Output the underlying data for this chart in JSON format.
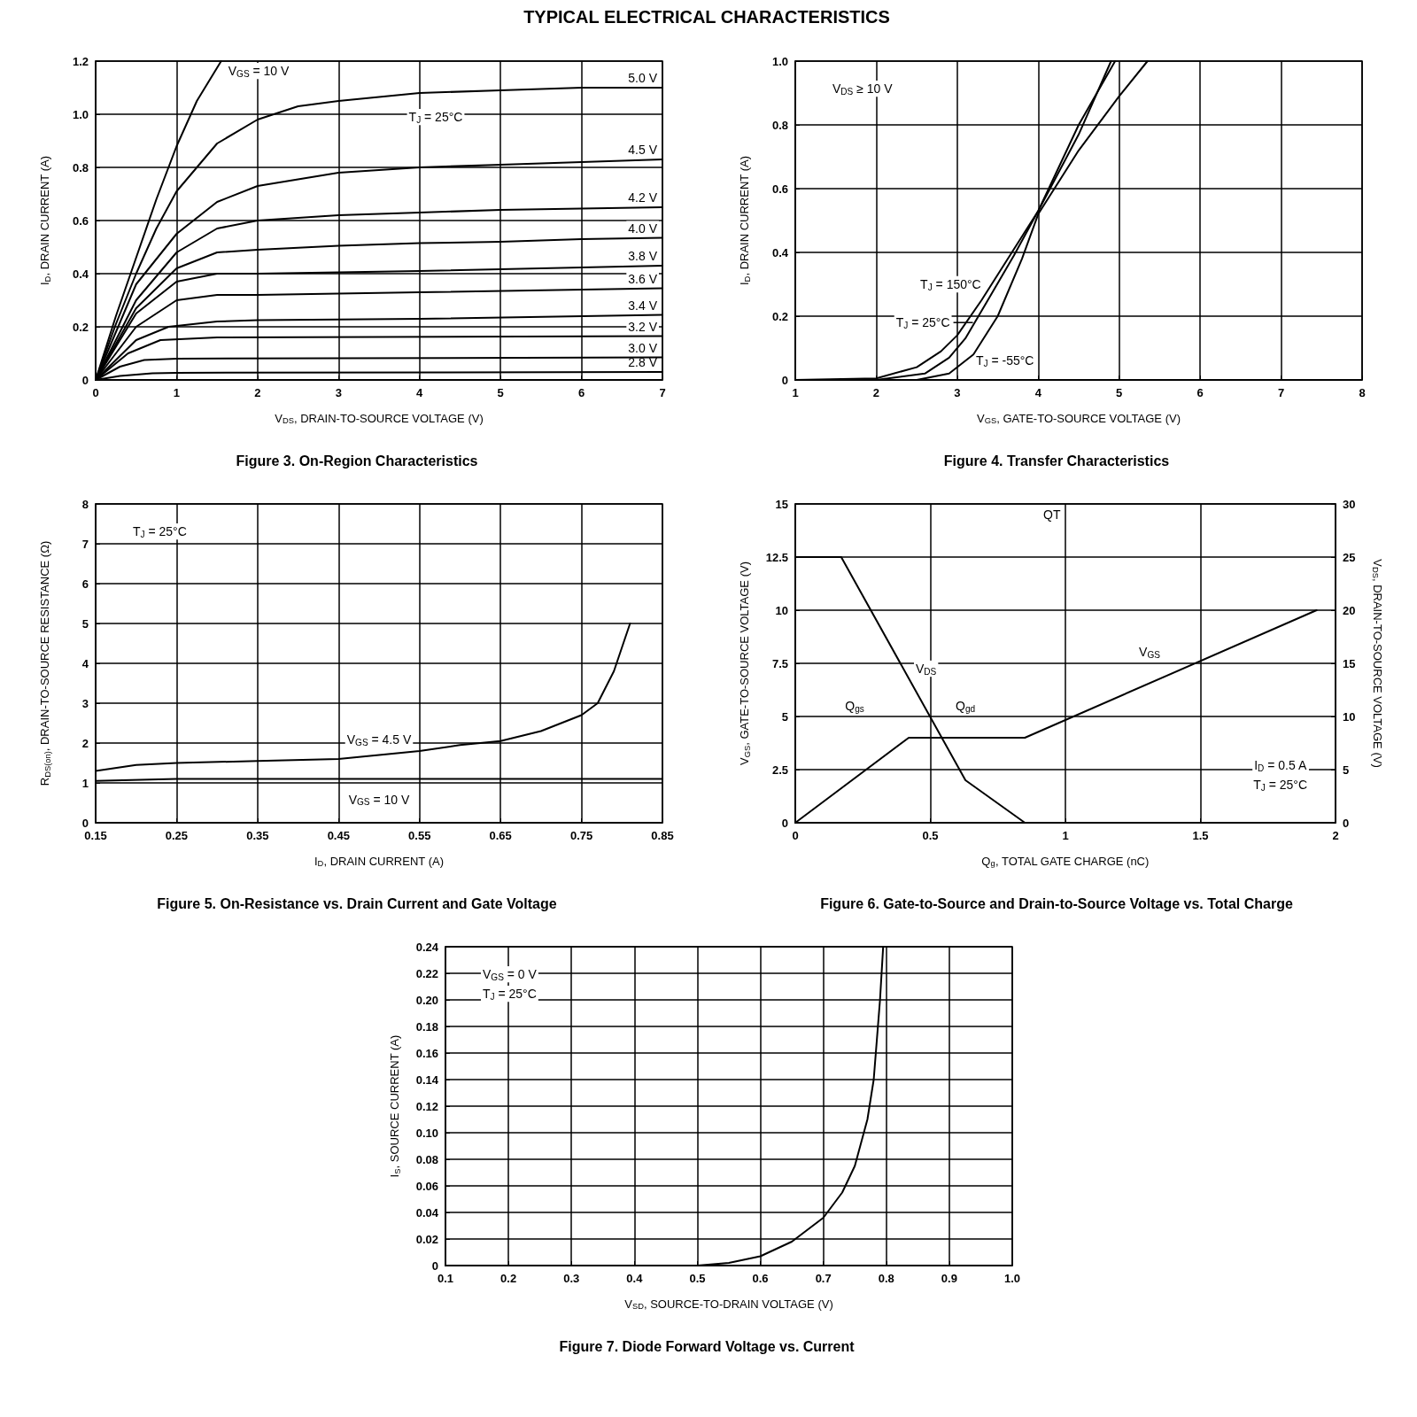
{
  "chart_data": [
    {
      "type": "line",
      "title": "Figure 3. On-Region Characteristics",
      "xlabel": "V$_{DS}$, DRAIN-TO-SOURCE VOLTAGE (V)",
      "ylabel": "I$_{D}$, DRAIN CURRENT (A)",
      "xlim": [
        0,
        7
      ],
      "ylim": [
        0,
        1.2
      ],
      "xticks": [
        0,
        1,
        2,
        3,
        4,
        5,
        6,
        7
      ],
      "yticks": [
        0,
        0.2,
        0.4,
        0.6,
        0.8,
        {
          "value": 1.0,
          "label": "1.0"
        },
        1.2
      ],
      "grid": true,
      "marker": "none",
      "line_style": "solid",
      "annotations": [
        "TYPICAL ELECTRICAL CHARACTERISTICS",
        "T$_{J}$ = 25°C"
      ],
      "series": [
        {
          "name": "V$_{GS}$ = 10 V",
          "color": "#000000",
          "x": [
            0,
            0.25,
            0.5,
            0.75,
            1,
            1.25,
            1.55
          ],
          "values": [
            0,
            0.24,
            0.46,
            0.68,
            0.88,
            1.05,
            1.2
          ]
        },
        {
          "name": "5.0 V",
          "color": "#000000",
          "x": [
            0,
            0.25,
            0.5,
            0.75,
            1,
            1.5,
            2,
            2.5,
            3,
            4,
            5,
            6,
            7
          ],
          "values": [
            0,
            0.21,
            0.4,
            0.57,
            0.71,
            0.89,
            0.98,
            1.03,
            1.05,
            1.08,
            1.09,
            1.1,
            1.1
          ]
        },
        {
          "name": "4.5 V",
          "color": "#000000",
          "x": [
            0,
            0.5,
            1,
            1.5,
            2,
            3,
            4,
            5,
            6,
            7
          ],
          "values": [
            0,
            0.36,
            0.55,
            0.67,
            0.73,
            0.78,
            0.8,
            0.81,
            0.82,
            0.83
          ]
        },
        {
          "name": "4.2 V",
          "color": "#000000",
          "x": [
            0,
            0.5,
            1,
            1.5,
            2,
            3,
            4,
            5,
            6,
            7
          ],
          "values": [
            0,
            0.3,
            0.48,
            0.57,
            0.6,
            0.62,
            0.63,
            0.64,
            0.645,
            0.65
          ]
        },
        {
          "name": "4.0 V",
          "color": "#000000",
          "x": [
            0,
            0.5,
            1,
            1.5,
            2,
            3,
            4,
            5,
            6,
            7
          ],
          "values": [
            0,
            0.27,
            0.42,
            0.48,
            0.49,
            0.505,
            0.515,
            0.52,
            0.53,
            0.535
          ]
        },
        {
          "name": "3.8 V",
          "color": "#000000",
          "x": [
            0,
            0.5,
            1,
            1.5,
            2,
            4,
            7
          ],
          "values": [
            0,
            0.25,
            0.37,
            0.4,
            0.4,
            0.41,
            0.43
          ]
        },
        {
          "name": "3.6 V",
          "color": "#000000",
          "x": [
            0,
            0.5,
            1,
            1.5,
            2,
            4,
            7
          ],
          "values": [
            0,
            0.2,
            0.3,
            0.32,
            0.32,
            0.33,
            0.345
          ]
        },
        {
          "name": "3.4 V",
          "color": "#000000",
          "x": [
            0,
            0.5,
            0.9,
            1.5,
            2,
            4,
            7
          ],
          "values": [
            0,
            0.15,
            0.2,
            0.22,
            0.225,
            0.23,
            0.245
          ]
        },
        {
          "name": "3.2 V",
          "color": "#000000",
          "x": [
            0,
            0.4,
            0.8,
            1.5,
            7
          ],
          "values": [
            0,
            0.1,
            0.15,
            0.16,
            0.165
          ]
        },
        {
          "name": "3.0 V",
          "color": "#000000",
          "x": [
            0,
            0.3,
            0.6,
            1,
            7
          ],
          "values": [
            0,
            0.05,
            0.075,
            0.08,
            0.085
          ]
        },
        {
          "name": "2.8 V",
          "color": "#000000",
          "x": [
            0,
            0.3,
            0.7,
            1,
            7
          ],
          "values": [
            0,
            0.015,
            0.025,
            0.027,
            0.03
          ]
        }
      ]
    },
    {
      "type": "line",
      "title": "Figure 4. Transfer Characteristics",
      "xlabel": "V$_{GS}$, GATE-TO-SOURCE VOLTAGE (V)",
      "ylabel": "I$_{D}$, DRAIN CURRENT (A)",
      "xlim": [
        1,
        8
      ],
      "ylim": [
        0,
        1
      ],
      "xticks": [
        1,
        2,
        3,
        4,
        5,
        6,
        7,
        8
      ],
      "yticks": [
        0,
        0.2,
        0.4,
        0.6,
        0.8,
        {
          "value": 1.0,
          "label": "1.0"
        }
      ],
      "grid": true,
      "marker": "none",
      "line_style": "solid",
      "annotations": [
        "V$_{DS}$ ≥ 10 V"
      ],
      "series": [
        {
          "name": "T$_{J}$ = 150°C",
          "color": "#000000",
          "x": [
            1,
            2,
            2.5,
            2.8,
            3,
            3.3,
            3.6,
            4,
            4.5,
            4.9
          ],
          "values": [
            0,
            0.005,
            0.04,
            0.09,
            0.14,
            0.25,
            0.37,
            0.53,
            0.77,
            1.0
          ]
        },
        {
          "name": "T$_{J}$ = 25°C",
          "color": "#000000",
          "x": [
            1,
            2,
            2.6,
            2.9,
            3.1,
            3.4,
            3.7,
            4,
            4.5,
            4.95
          ],
          "values": [
            0,
            0,
            0.02,
            0.07,
            0.13,
            0.26,
            0.39,
            0.53,
            0.8,
            1.0
          ]
        },
        {
          "name": "T$_{J}$ = -55°C",
          "color": "#000000",
          "x": [
            1,
            2.5,
            2.9,
            3.2,
            3.5,
            3.8,
            4,
            4.5,
            5,
            5.35
          ],
          "values": [
            0,
            0,
            0.02,
            0.08,
            0.2,
            0.38,
            0.52,
            0.72,
            0.89,
            1.0
          ]
        }
      ]
    },
    {
      "type": "line",
      "title": "Figure 5. On-Resistance vs. Drain Current and Gate Voltage",
      "xlabel": "I$_{D}$, DRAIN CURRENT (A)",
      "ylabel": "R$_{DS(on)}$, DRAIN-TO-SOURCE RESISTANCE (Ω)",
      "xlim": [
        0.15,
        0.85
      ],
      "ylim": [
        0,
        8
      ],
      "xticks": [
        0.15,
        0.25,
        0.35,
        0.45,
        0.55,
        0.65,
        0.75,
        0.85
      ],
      "yticks": [
        0,
        1,
        2,
        3,
        4,
        5,
        6,
        7,
        8
      ],
      "grid": true,
      "marker": "none",
      "line_style": "solid",
      "annotations": [
        "T$_{J}$ = 25°C"
      ],
      "series": [
        {
          "name": "V$_{GS}$ = 4.5 V",
          "color": "#000000",
          "x": [
            0.15,
            0.2,
            0.25,
            0.35,
            0.45,
            0.5,
            0.55,
            0.6,
            0.65,
            0.7,
            0.75,
            0.77,
            0.79,
            0.8,
            0.81
          ],
          "values": [
            1.3,
            1.45,
            1.5,
            1.55,
            1.6,
            1.7,
            1.8,
            1.95,
            2.05,
            2.3,
            2.7,
            3.0,
            3.8,
            4.4,
            5.0
          ]
        },
        {
          "name": "V$_{GS}$ = 10 V",
          "color": "#000000",
          "x": [
            0.15,
            0.25,
            0.85
          ],
          "values": [
            1.05,
            1.1,
            1.1
          ]
        }
      ]
    },
    {
      "type": "line",
      "title": "Figure 6. Gate-to-Source and Drain-to-Source Voltage vs. Total Charge",
      "xlabel": "Q$_{g}$, TOTAL GATE CHARGE (nC)",
      "ylabel": "V$_{GS}$, GATE-TO-SOURCE VOLTAGE (V)",
      "y2label": "V$_{DS}$, DRAIN-TO-SOURCE VOLTAGE (V)",
      "xlim": [
        0,
        2
      ],
      "ylim": [
        0,
        15
      ],
      "y2lim": [
        0,
        30
      ],
      "xticks": [
        0,
        0.5,
        1,
        1.5,
        2
      ],
      "yticks": [
        0,
        2.5,
        5,
        7.5,
        10,
        12.5,
        15
      ],
      "y2ticks": [
        0,
        5,
        10,
        15,
        20,
        25,
        30
      ],
      "grid": true,
      "marker": "none",
      "line_style": "solid",
      "annotations": [
        {
          "text": "QT",
          "x": 0.95,
          "y": 14.5
        },
        {
          "text": "Q$_{gs}$",
          "x": 0.22,
          "y": 5.5
        },
        {
          "text": "Q$_{gd}$",
          "x": 0.63,
          "y": 5.5
        },
        "I$_{D}$ = 0.5 A",
        "T$_{J}$ = 25°C"
      ],
      "series": [
        {
          "name": "V$_{DS}$",
          "color": "#000000",
          "axis": "y2",
          "x": [
            0,
            0.17,
            0.63,
            0.85
          ],
          "values": [
            25,
            25,
            4,
            0
          ]
        },
        {
          "name": "V$_{GS}$",
          "color": "#000000",
          "x": [
            0,
            0.42,
            0.85,
            1.93
          ],
          "values": [
            0,
            4,
            4,
            10
          ]
        }
      ]
    },
    {
      "type": "line",
      "title": "Figure 7. Diode Forward Voltage vs. Current",
      "xlabel": "V$_{SD}$, SOURCE-TO-DRAIN VOLTAGE (V)",
      "ylabel": "I$_{S}$, SOURCE CURRENT (A)",
      "xlim": [
        0.1,
        1.0
      ],
      "ylim": [
        0,
        0.24
      ],
      "xticks": [
        0.1,
        0.2,
        0.3,
        0.4,
        0.5,
        0.6,
        0.7,
        0.8,
        0.9,
        {
          "value": 1.0,
          "label": "1.0"
        }
      ],
      "yticks": [
        0,
        0.02,
        0.04,
        0.06,
        0.08,
        {
          "value": 0.1,
          "label": "0.10"
        },
        0.12,
        0.14,
        0.16,
        0.18,
        {
          "value": 0.2,
          "label": "0.20"
        },
        0.22,
        0.24
      ],
      "grid": true,
      "marker": "none",
      "line_style": "solid",
      "annotations": [
        "V$_{GS}$ = 0 V",
        "T$_{J}$ = 25°C"
      ],
      "series": [
        {
          "color": "#000000",
          "x": [
            0.1,
            0.5,
            0.55,
            0.6,
            0.65,
            0.7,
            0.73,
            0.75,
            0.77,
            0.78,
            0.785,
            0.79,
            0.795
          ],
          "values": [
            0,
            0,
            0.002,
            0.007,
            0.018,
            0.036,
            0.055,
            0.075,
            0.11,
            0.14,
            0.17,
            0.2,
            0.24
          ]
        }
      ]
    }
  ]
}
